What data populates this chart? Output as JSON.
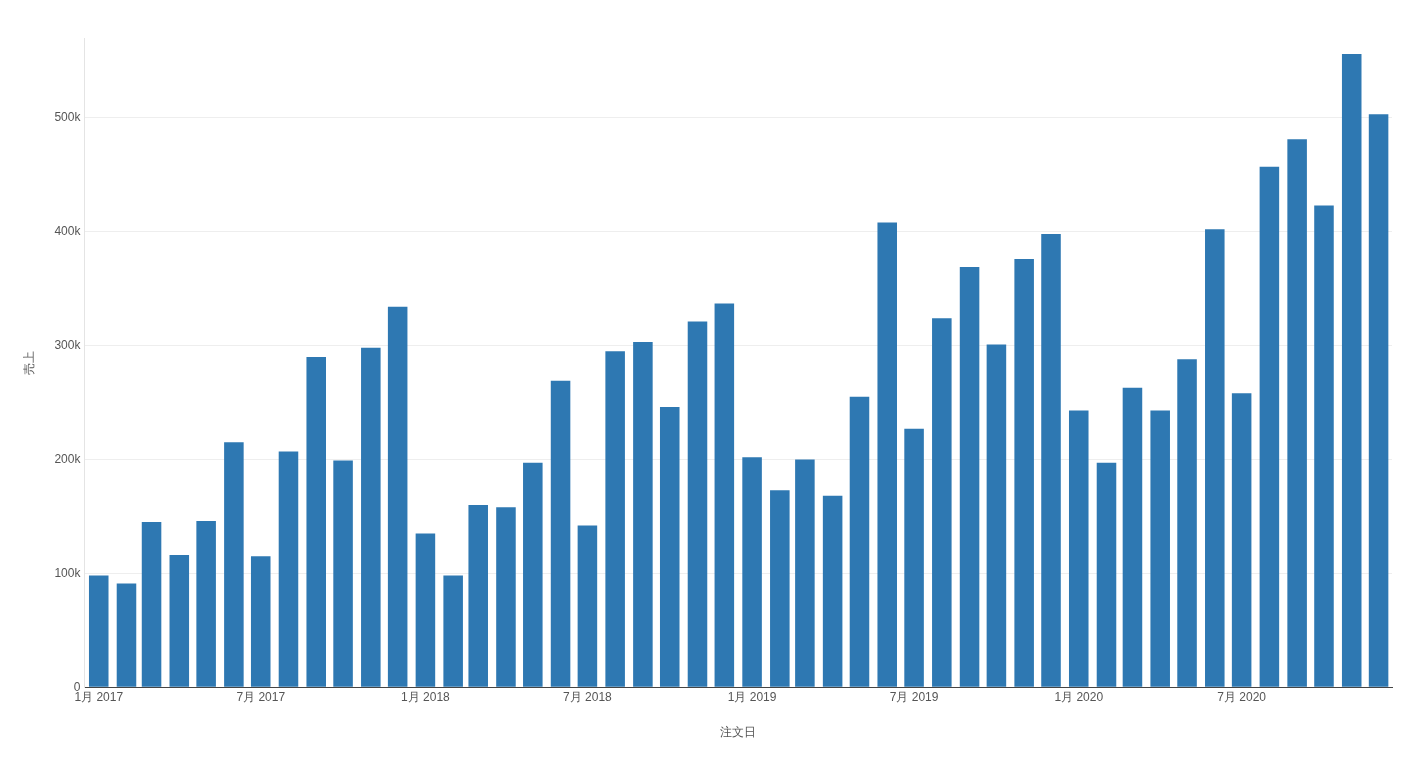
{
  "chart_data": {
    "type": "bar",
    "xlabel": "注文日",
    "ylabel": "売上",
    "x": [
      "2017-01",
      "2017-02",
      "2017-03",
      "2017-04",
      "2017-05",
      "2017-06",
      "2017-07",
      "2017-08",
      "2017-09",
      "2017-10",
      "2017-11",
      "2017-12",
      "2018-01",
      "2018-02",
      "2018-03",
      "2018-04",
      "2018-05",
      "2018-06",
      "2018-07",
      "2018-08",
      "2018-09",
      "2018-10",
      "2018-11",
      "2018-12",
      "2019-01",
      "2019-02",
      "2019-03",
      "2019-04",
      "2019-05",
      "2019-06",
      "2019-07",
      "2019-08",
      "2019-09",
      "2019-10",
      "2019-11",
      "2019-12",
      "2020-01",
      "2020-02",
      "2020-03",
      "2020-04",
      "2020-05",
      "2020-06",
      "2020-07",
      "2020-08",
      "2020-09",
      "2020-10",
      "2020-11",
      "2020-12"
    ],
    "values": [
      98000,
      91000,
      145000,
      116000,
      146000,
      215000,
      115000,
      207000,
      290000,
      199000,
      298000,
      334000,
      135000,
      98000,
      160000,
      158000,
      197000,
      269000,
      142000,
      295000,
      303000,
      246000,
      321000,
      337000,
      202000,
      173000,
      200000,
      168000,
      255000,
      408000,
      227000,
      324000,
      369000,
      301000,
      376000,
      398000,
      243000,
      197000,
      263000,
      243000,
      288000,
      402000,
      258000,
      457000,
      481000,
      423000,
      556000,
      503000
    ],
    "color": "#2e78b2",
    "xlim": [
      "2016-12-16",
      "2020-12-16"
    ],
    "xticks": [
      {
        "value": "2017-01",
        "label": "1月 2017"
      },
      {
        "value": "2017-07",
        "label": "7月 2017"
      },
      {
        "value": "2018-01",
        "label": "1月 2018"
      },
      {
        "value": "2018-07",
        "label": "7月 2018"
      },
      {
        "value": "2019-01",
        "label": "1月 2019"
      },
      {
        "value": "2019-07",
        "label": "7月 2019"
      },
      {
        "value": "2020-01",
        "label": "1月 2020"
      },
      {
        "value": "2020-07",
        "label": "7月 2020"
      }
    ],
    "ylim": [
      0,
      570000
    ],
    "yticks": [
      0,
      {
        "value": 100000,
        "label": "100k"
      },
      {
        "value": 200000,
        "label": "200k"
      },
      {
        "value": 300000,
        "label": "300k"
      },
      {
        "value": 400000,
        "label": "400k"
      },
      {
        "value": 500000,
        "label": "500k"
      }
    ],
    "grid": "y",
    "legend": false
  }
}
